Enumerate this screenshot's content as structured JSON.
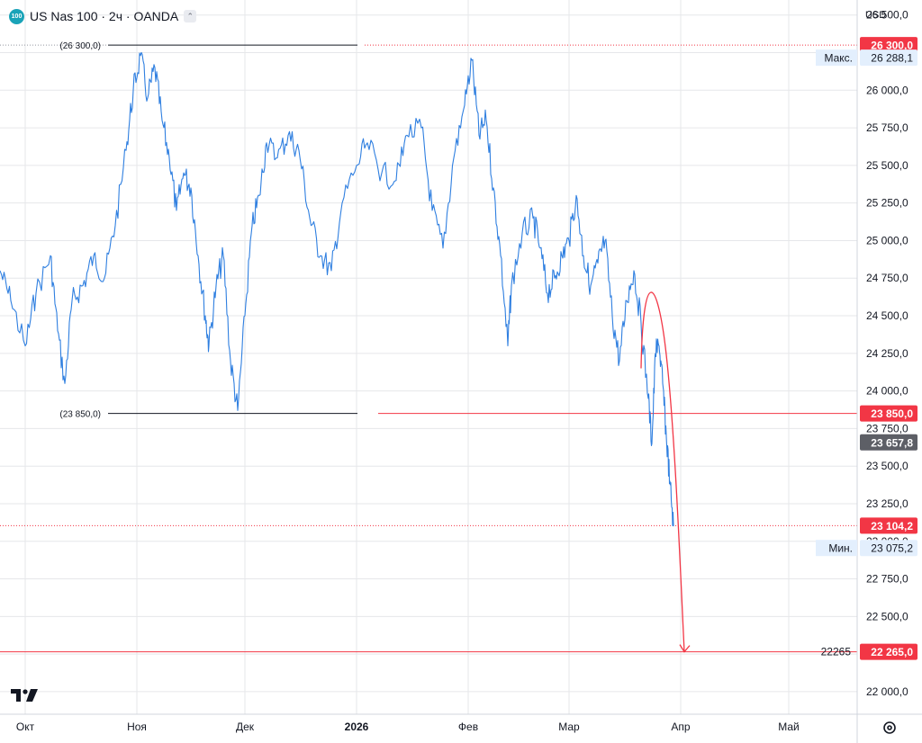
{
  "header": {
    "badge": "100",
    "title": "US Nas 100 · 2ч · OANDA",
    "currency": "USD"
  },
  "icons": {
    "symbol": "nasdaq-100-badge-icon",
    "collapse": "collapse-legend-icon",
    "logo": "tradingview-logo-icon",
    "settings": "gear-icon"
  },
  "colors": {
    "series": "#2f7fe0",
    "red": "#f23645",
    "grid": "#e6e7ea",
    "axis_text": "#131722",
    "current_price_bg": "#5d5f66"
  },
  "chart_data": {
    "type": "line",
    "title": "US Nas 100 · 2ч · OANDA",
    "ylim": [
      21850,
      26600
    ],
    "x_range": [
      "2025-09-24",
      "2026-05-20"
    ],
    "y_ticks": [
      "22 000,0",
      "22 250,0",
      "22 500,0",
      "22 750,0",
      "23 000,0",
      "23 250,0",
      "23 500,0",
      "23 750,0",
      "24 000,0",
      "24 250,0",
      "24 500,0",
      "24 750,0",
      "25 000,0",
      "25 250,0",
      "25 500,0",
      "25 750,0",
      "26 000,0",
      "26 250,0",
      "26 500,0"
    ],
    "y_tick_values": [
      22000,
      22250,
      22500,
      22750,
      23000,
      23250,
      23500,
      23750,
      24000,
      24250,
      24500,
      24750,
      25000,
      25250,
      25500,
      25750,
      26000,
      26250,
      26500
    ],
    "x_ticks": [
      {
        "label": "Окт",
        "date": "2025-10-01"
      },
      {
        "label": "Ноя",
        "date": "2025-11-01"
      },
      {
        "label": "Дек",
        "date": "2025-12-01"
      },
      {
        "label": "2026",
        "date": "2026-01-01"
      },
      {
        "label": "Фев",
        "date": "2026-02-01"
      },
      {
        "label": "Мар",
        "date": "2026-03-01"
      },
      {
        "label": "Апр",
        "date": "2026-04-01"
      },
      {
        "label": "Май",
        "date": "2026-05-01"
      }
    ],
    "series": [
      {
        "values": [
          [
            "2025-09-24",
            24800
          ],
          [
            "2025-09-27",
            24600
          ],
          [
            "2025-10-01",
            24300
          ],
          [
            "2025-10-04",
            24650
          ],
          [
            "2025-10-08",
            24900
          ],
          [
            "2025-10-10",
            24400
          ],
          [
            "2025-10-12",
            24050
          ],
          [
            "2025-10-14",
            24600
          ],
          [
            "2025-10-17",
            24700
          ],
          [
            "2025-10-20",
            24900
          ],
          [
            "2025-10-23",
            24750
          ],
          [
            "2025-10-26",
            25100
          ],
          [
            "2025-10-29",
            25600
          ],
          [
            "2025-10-31",
            26000
          ],
          [
            "2025-11-02",
            26230
          ],
          [
            "2025-11-04",
            25950
          ],
          [
            "2025-11-06",
            26150
          ],
          [
            "2025-11-08",
            25800
          ],
          [
            "2025-11-10",
            25550
          ],
          [
            "2025-11-12",
            25200
          ],
          [
            "2025-11-14",
            25450
          ],
          [
            "2025-11-16",
            25350
          ],
          [
            "2025-11-18",
            24900
          ],
          [
            "2025-11-20",
            24500
          ],
          [
            "2025-11-21",
            24300
          ],
          [
            "2025-11-23",
            24700
          ],
          [
            "2025-11-25",
            24900
          ],
          [
            "2025-11-27",
            24200
          ],
          [
            "2025-11-29",
            23870
          ],
          [
            "2025-12-01",
            24500
          ],
          [
            "2025-12-03",
            25100
          ],
          [
            "2025-12-05",
            25300
          ],
          [
            "2025-12-07",
            25650
          ],
          [
            "2025-12-10",
            25550
          ],
          [
            "2025-12-13",
            25700
          ],
          [
            "2025-12-16",
            25600
          ],
          [
            "2025-12-19",
            25150
          ],
          [
            "2025-12-22",
            24900
          ],
          [
            "2025-12-25",
            24800
          ],
          [
            "2025-12-28",
            25250
          ],
          [
            "2026-01-01",
            25500
          ],
          [
            "2026-01-04",
            25650
          ],
          [
            "2026-01-08",
            25450
          ],
          [
            "2026-01-12",
            25400
          ],
          [
            "2026-01-15",
            25700
          ],
          [
            "2026-01-19",
            25750
          ],
          [
            "2026-01-22",
            25200
          ],
          [
            "2026-01-25",
            24950
          ],
          [
            "2026-01-28",
            25550
          ],
          [
            "2026-01-31",
            25900
          ],
          [
            "2026-02-02",
            26200
          ],
          [
            "2026-02-04",
            25700
          ],
          [
            "2026-02-06",
            25800
          ],
          [
            "2026-02-08",
            25350
          ],
          [
            "2026-02-10",
            24900
          ],
          [
            "2026-02-12",
            24300
          ],
          [
            "2026-02-13",
            24700
          ],
          [
            "2026-02-16",
            25050
          ],
          [
            "2026-02-19",
            25150
          ],
          [
            "2026-02-21",
            24950
          ],
          [
            "2026-02-23",
            24650
          ],
          [
            "2026-02-25",
            24750
          ],
          [
            "2026-02-27",
            24900
          ],
          [
            "2026-03-01",
            25000
          ],
          [
            "2026-03-03",
            25300
          ],
          [
            "2026-03-05",
            24900
          ],
          [
            "2026-03-07",
            24700
          ],
          [
            "2026-03-09",
            24850
          ],
          [
            "2026-03-11",
            25000
          ],
          [
            "2026-03-13",
            24500
          ],
          [
            "2026-03-15",
            24200
          ],
          [
            "2026-03-17",
            24600
          ],
          [
            "2026-03-19",
            24800
          ],
          [
            "2026-03-21",
            24450
          ],
          [
            "2026-03-23",
            23950
          ],
          [
            "2026-03-24",
            23650
          ],
          [
            "2026-03-25",
            24250
          ],
          [
            "2026-03-26",
            24300
          ],
          [
            "2026-03-27",
            24050
          ],
          [
            "2026-03-28",
            23700
          ],
          [
            "2026-03-29",
            23400
          ],
          [
            "2026-03-30",
            23100
          ]
        ]
      }
    ],
    "horizontal_levels": [
      {
        "value": 26300,
        "label": "(26 300,0)",
        "price_tag": "26 300,0"
      },
      {
        "value": 23850,
        "label": "(23 850,0)",
        "price_tag": "23 850,0"
      },
      {
        "value": 22265,
        "label": "22265",
        "price_tag": "22 265,0"
      }
    ],
    "current_low_line": {
      "value": 23104.2,
      "price_tag": "23 104,2"
    },
    "current_price": {
      "value": 23657.8,
      "price_tag": "23 657,8"
    },
    "max": {
      "label": "Макс.",
      "value": 26288.1,
      "price_tag": "26 288,1"
    },
    "min": {
      "label": "Мин.",
      "value": 23075.2,
      "price_tag": "23 075,2"
    },
    "forecast_arrow": {
      "start": [
        "2026-03-21",
        24150
      ],
      "peak": [
        "2026-03-23",
        24600
      ],
      "end": [
        "2026-04-02",
        22265
      ]
    }
  }
}
